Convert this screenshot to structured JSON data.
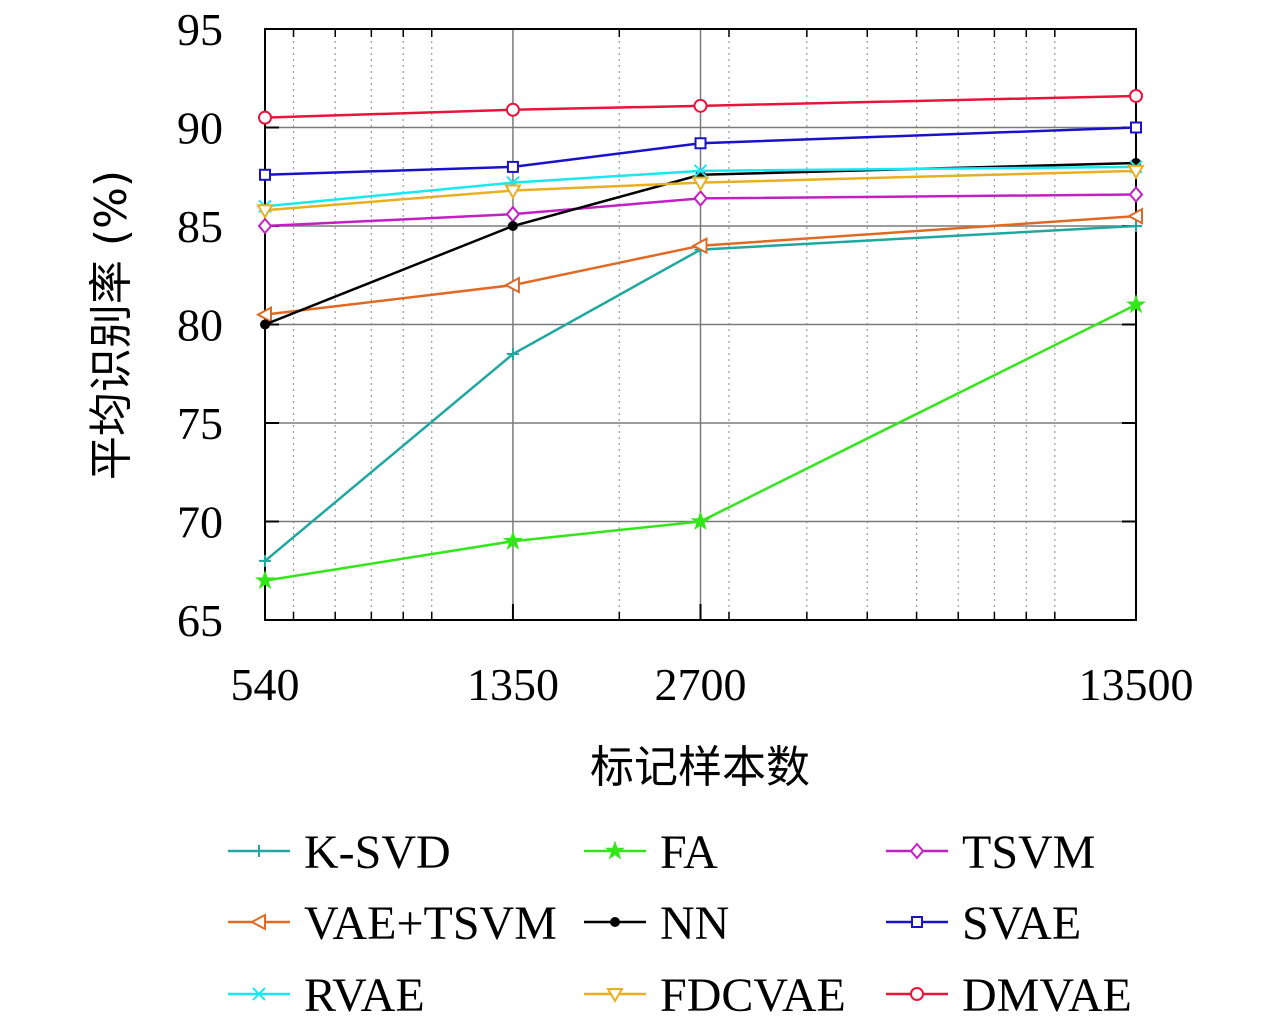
{
  "chart_data": {
    "type": "line",
    "xscale": "log",
    "xlim": [
      540,
      13500
    ],
    "ylim": [
      65,
      95
    ],
    "x": [
      540,
      1350,
      2700,
      13500
    ],
    "xticks": [
      "540",
      "1350",
      "2700",
      "13500"
    ],
    "yticks": [
      "65",
      "70",
      "75",
      "80",
      "85",
      "90",
      "95"
    ],
    "xlabel": "标记样本数",
    "ylabel": "平均识别率 (%)",
    "grid": true,
    "legend_position": "bottom",
    "series": [
      {
        "name": "K-SVD",
        "color": "#20a8a0",
        "marker": "plus",
        "values": [
          68.0,
          78.5,
          83.8,
          85.0
        ]
      },
      {
        "name": "FA",
        "color": "#33e61a",
        "marker": "star",
        "values": [
          67.0,
          69.0,
          70.0,
          81.0
        ]
      },
      {
        "name": "TSVM",
        "color": "#c21fc4",
        "marker": "diamond",
        "values": [
          85.0,
          85.6,
          86.4,
          86.6
        ]
      },
      {
        "name": "VAE+TSVM",
        "color": "#e06a25",
        "marker": "triangle-left",
        "values": [
          80.5,
          82.0,
          84.0,
          85.5
        ]
      },
      {
        "name": "NN",
        "color": "#000000",
        "marker": "dot",
        "values": [
          80.0,
          85.0,
          87.6,
          88.2
        ]
      },
      {
        "name": "SVAE",
        "color": "#1a12c8",
        "marker": "square",
        "values": [
          87.6,
          88.0,
          89.2,
          90.0
        ]
      },
      {
        "name": "RVAE",
        "color": "#1ae8f0",
        "marker": "x",
        "values": [
          86.0,
          87.2,
          87.8,
          88.0
        ]
      },
      {
        "name": "FDCVAE",
        "color": "#e8b020",
        "marker": "triangle-down",
        "values": [
          85.8,
          86.8,
          87.2,
          87.8
        ]
      },
      {
        "name": "DMVAE",
        "color": "#e8143c",
        "marker": "circle",
        "values": [
          90.5,
          90.9,
          91.1,
          91.6
        ]
      }
    ]
  }
}
